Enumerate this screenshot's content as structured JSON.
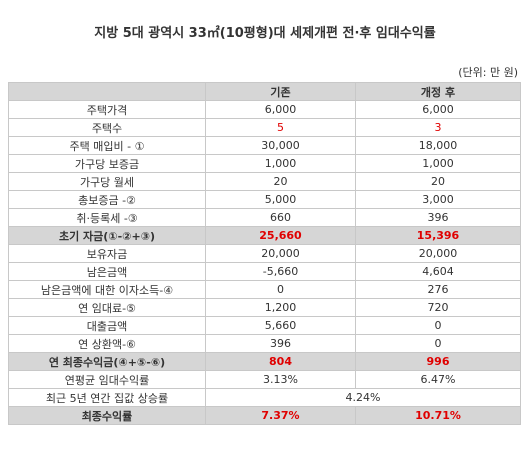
{
  "title": "지방 5대 광역시 33㎡(10평형)대 세제개편 전·후 임대수익률",
  "unit": "(단위: 만 원)",
  "table": {
    "header": [
      "기존",
      "개정 후"
    ],
    "rows": [
      [
        "주택가격",
        "6,000",
        "6,000"
      ],
      [
        "주택수",
        "5",
        "3"
      ],
      [
        "주택 매입비 - ①",
        "30,000",
        "18,000"
      ],
      [
        "가구당 보증금",
        "1,000",
        "1,000"
      ],
      [
        "가구당 월세",
        "20",
        "20"
      ],
      [
        "총보증금 -②",
        "5,000",
        "3,000"
      ],
      [
        "취·등록세 -③",
        "660",
        "396"
      ],
      [
        "초기 자금(①-②+③)",
        "25,660",
        "15,396"
      ],
      [
        "보유자금",
        "20,000",
        "20,000"
      ],
      [
        "남은금액",
        "-5,660",
        "4,604"
      ],
      [
        "남은금액에 대한 이자소득-④",
        "0",
        "276"
      ],
      [
        "연 임대료-⑤",
        "1,200",
        "720"
      ],
      [
        "대출금액",
        "5,660",
        "0"
      ],
      [
        "연 상환액-⑥",
        "396",
        "0"
      ],
      [
        "연 최종수익금(④+⑤-⑥)",
        "804",
        "996"
      ],
      [
        "연평균 임대수익률",
        "3.13%",
        "6.47%"
      ],
      [
        "최근 5년 연간 집값 상승률",
        "4.24%"
      ],
      [
        "최종수익률",
        "7.37%",
        "10.71%"
      ]
    ]
  }
}
